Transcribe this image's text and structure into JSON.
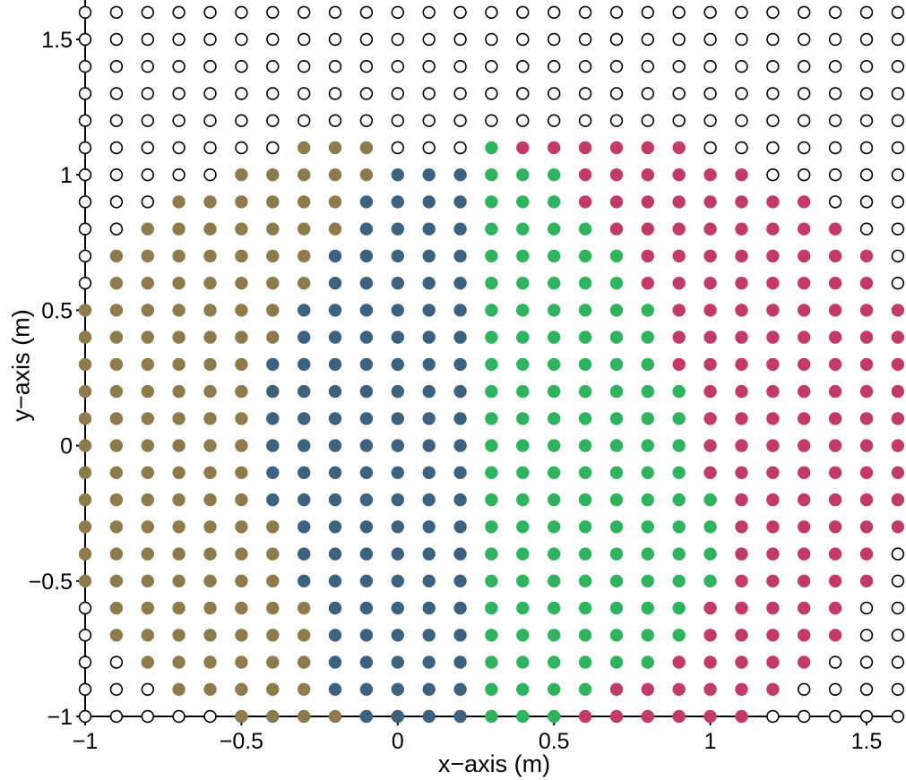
{
  "chart_data": {
    "type": "scatter",
    "title": "",
    "xlabel": "x−axis (m)",
    "ylabel": "y−axis (m)",
    "xlim": [
      -1,
      1.6
    ],
    "ylim": [
      -1,
      1.6
    ],
    "grid": false,
    "legend_position": "none",
    "axis_color": "#000000",
    "x_ticks": [
      {
        "value": -1,
        "label": "−1"
      },
      {
        "value": -0.5,
        "label": "−0.5"
      },
      {
        "value": 0,
        "label": "0"
      },
      {
        "value": 0.5,
        "label": "0.5"
      },
      {
        "value": 1,
        "label": "1"
      },
      {
        "value": 1.5,
        "label": "1.5"
      }
    ],
    "y_ticks": [
      {
        "value": -1,
        "label": "−1"
      },
      {
        "value": -0.5,
        "label": "−0.5"
      },
      {
        "value": 0,
        "label": "0"
      },
      {
        "value": 0.5,
        "label": "0.5"
      },
      {
        "value": 1,
        "label": "1"
      },
      {
        "value": 1.5,
        "label": "1.5"
      }
    ],
    "classes": {
      "o": {
        "label": "unclassified-open-circle",
        "fill": "#ffffff",
        "stroke": "#000000"
      },
      "k": {
        "label": "cluster-khaki",
        "fill": "#8e7b4c",
        "stroke": "none"
      },
      "b": {
        "label": "cluster-blue",
        "fill": "#3d6280",
        "stroke": "none"
      },
      "g": {
        "label": "cluster-green",
        "fill": "#2fb35e",
        "stroke": "none"
      },
      "c": {
        "label": "cluster-crimson",
        "fill": "#c23a67",
        "stroke": "none"
      }
    },
    "point_grid": {
      "x_start": -1.0,
      "x_step": 0.1,
      "cols": 27,
      "y_top": 1.6,
      "y_step": -0.1,
      "rows": 27,
      "rows_top_to_bottom": [
        "ooooooooooooooooooooooooooo",
        "ooooooooooooooooooooooooooo",
        "ooooooooooooooooooooooooooo",
        "ooooooooooooooooooooooooooo",
        "ooooooooooooooooooooooooooo",
        "oooooookkkooogccccccooooooo",
        "oooookkkkkbbbgggccccccooooo",
        "oookkkkkkbbbbgggccccccccooo",
        "ookkkkkkkbbbbggggccccccccoo",
        "okkkkkkkbbbbbgggggcccccccco",
        "okkkkkkkbbbbbgggggcccccccco",
        "kkkkkkkbbbbbbggggggcccccccc",
        "kkkkkkkbbbbbbggggggcccccccc",
        "kkkkkkbbbbbbbggggggcccccccc",
        "kkkkkkbbbbbbbgggggggccccccc",
        "kkkkkkbbbbbbbgggggggccccccc",
        "kkkkkkbbbbbbbgggggggccccccc",
        "kkkkkkbbbbbbbgggggggccccccc",
        "kkkkkkbbbbbbbggggggggcccccc",
        "kkkkkkkbbbbbbggggggggcccccc",
        "kkkkkkkbbbbbbggggggggccccco",
        "kkkkkkkbbbbbbggggggggccccco",
        "okkkkkkkbbbbbgggggggcccccoo",
        "okkkkkkkbbbbbgggggggcccccoo",
        "ookkkkkkbbbbbggggggcccccooo",
        "oookkkkkbbbbbggggccccccoooo",
        "oooookkkkbbbbgggccccccooooo"
      ]
    }
  }
}
